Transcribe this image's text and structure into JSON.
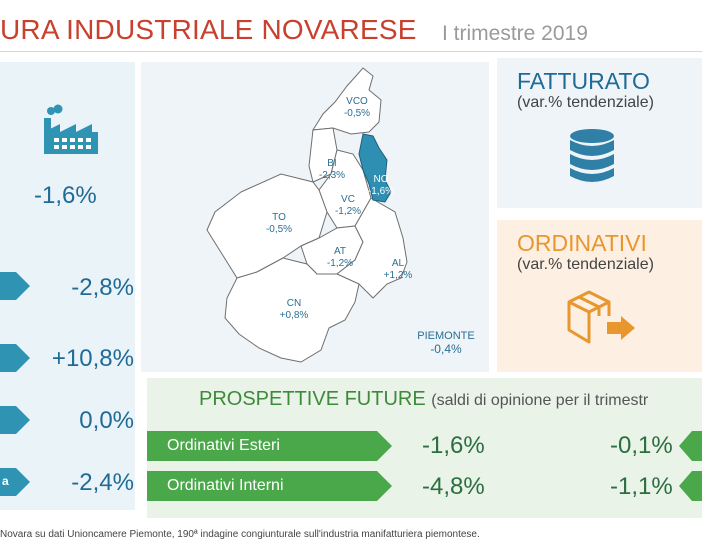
{
  "header": {
    "title": "URA INDUSTRIALE NOVARESE",
    "subtitle": "I trimestre 2019"
  },
  "left": {
    "production_value": "-1,6%",
    "rows": [
      {
        "label": "",
        "value": "-2,8%"
      },
      {
        "label": "",
        "value": "+10,8%"
      },
      {
        "label": "",
        "value": "0,0%"
      },
      {
        "label": "a",
        "value": "-2,4%"
      }
    ]
  },
  "map": {
    "regions": [
      {
        "code": "VCO",
        "value": "-0,5%"
      },
      {
        "code": "BI",
        "value": "-2,3%"
      },
      {
        "code": "NO",
        "value": "-1,6%"
      },
      {
        "code": "VC",
        "value": "-1,2%"
      },
      {
        "code": "TO",
        "value": "-0,5%"
      },
      {
        "code": "AT",
        "value": "-1,2%"
      },
      {
        "code": "AL",
        "value": "+1,2%"
      },
      {
        "code": "CN",
        "value": "+0,8%"
      }
    ],
    "piemonte": {
      "label": "PIEMONTE",
      "value": "-0,4%"
    },
    "highlight_color": "#2f8fb3"
  },
  "fatturato": {
    "title": "FATTURATO",
    "subtitle": "(var.% tendenziale)",
    "icon": "database-icon"
  },
  "ordinativi": {
    "title": "ORDINATIVI",
    "subtitle": "(var.% tendenziale)",
    "icon": "box-icon"
  },
  "prospettive": {
    "title": "PROSPETTIVE FUTURE",
    "paren": "(saldi di opinione per il trimestr",
    "rows": [
      {
        "label": "Ordinativi Esteri",
        "value": "-1,6%",
        "value2": "-0,1%"
      },
      {
        "label": "Ordinativi Interni",
        "value": "-4,8%",
        "value2": "-1,1%"
      }
    ]
  },
  "footer": "Novara su dati Unioncamere Piemonte, 190ª indagine congiunturale sull'industria manifatturiera piemontese.",
  "colors": {
    "title": "#c8402e",
    "accent_blue": "#2f94b4",
    "accent_green": "#4aa84a",
    "accent_orange": "#e8962e"
  }
}
